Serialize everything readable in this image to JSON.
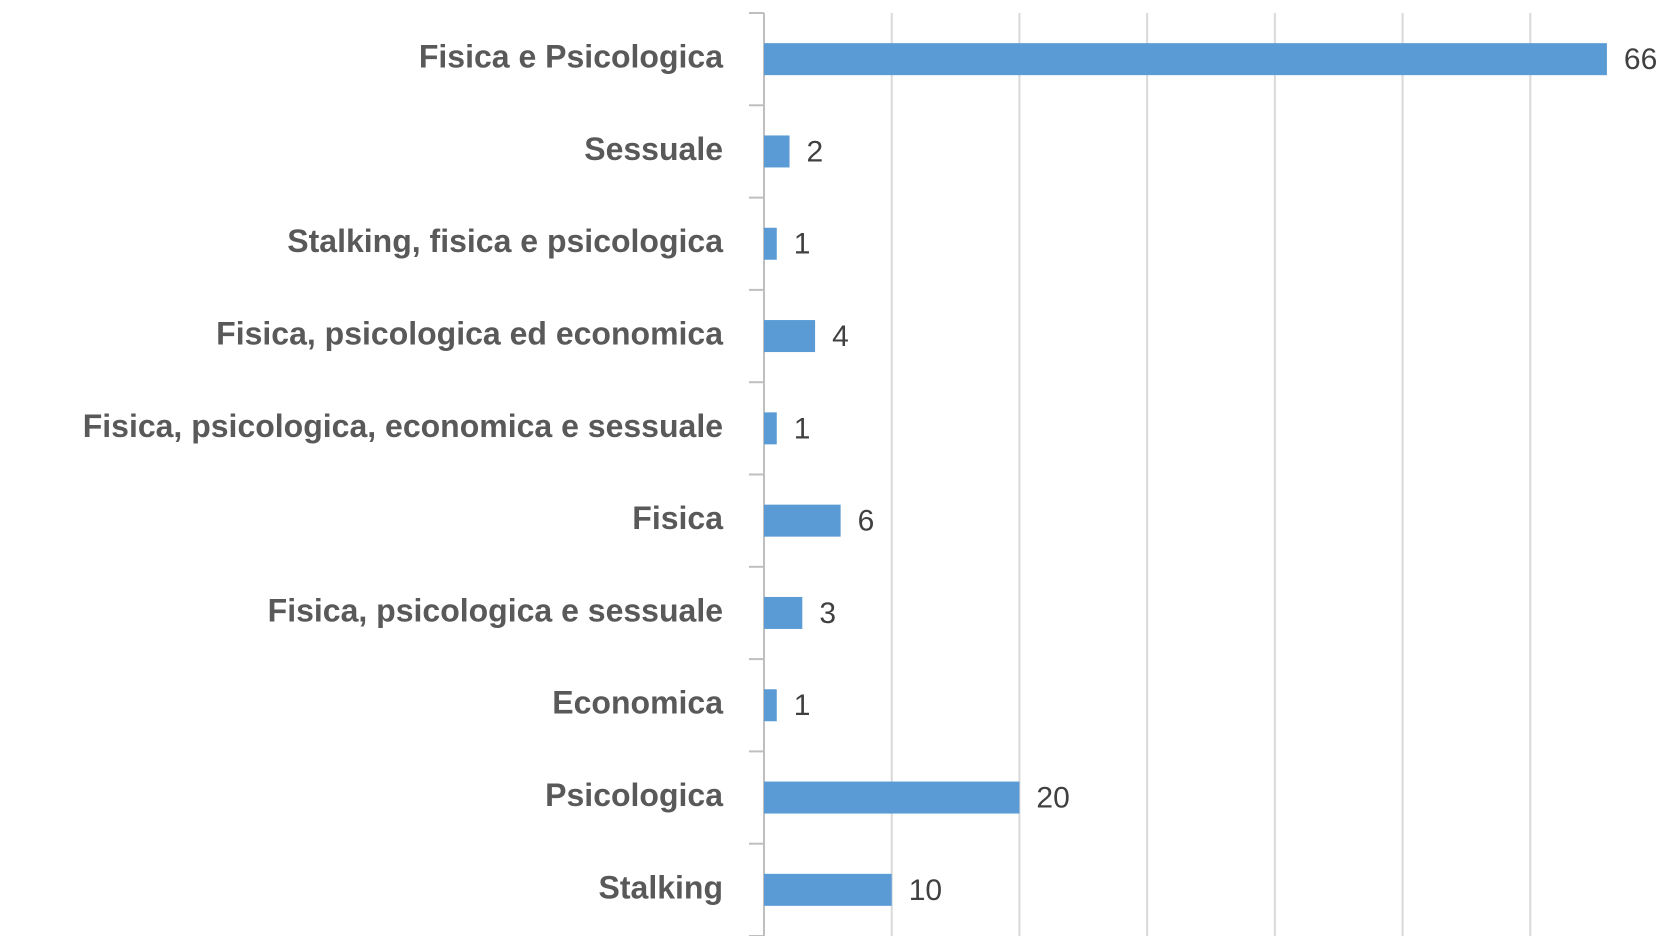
{
  "chart_data": {
    "type": "barh",
    "categories": [
      "Fisica e Psicologica",
      "Sessuale",
      "Stalking, fisica e psicologica",
      "Fisica, psicologica ed economica",
      "Fisica, psicologica, economica e sessuale",
      "Fisica",
      "Fisica, psicologica e sessuale",
      "Economica",
      "Psicologica",
      "Stalking"
    ],
    "values": [
      66,
      2,
      1,
      4,
      1,
      6,
      3,
      1,
      20,
      10
    ],
    "color": "#5b9bd5",
    "xlim": [
      0,
      70
    ],
    "xticks": [
      0,
      10,
      20,
      30,
      40,
      50,
      60
    ],
    "grid": true
  }
}
